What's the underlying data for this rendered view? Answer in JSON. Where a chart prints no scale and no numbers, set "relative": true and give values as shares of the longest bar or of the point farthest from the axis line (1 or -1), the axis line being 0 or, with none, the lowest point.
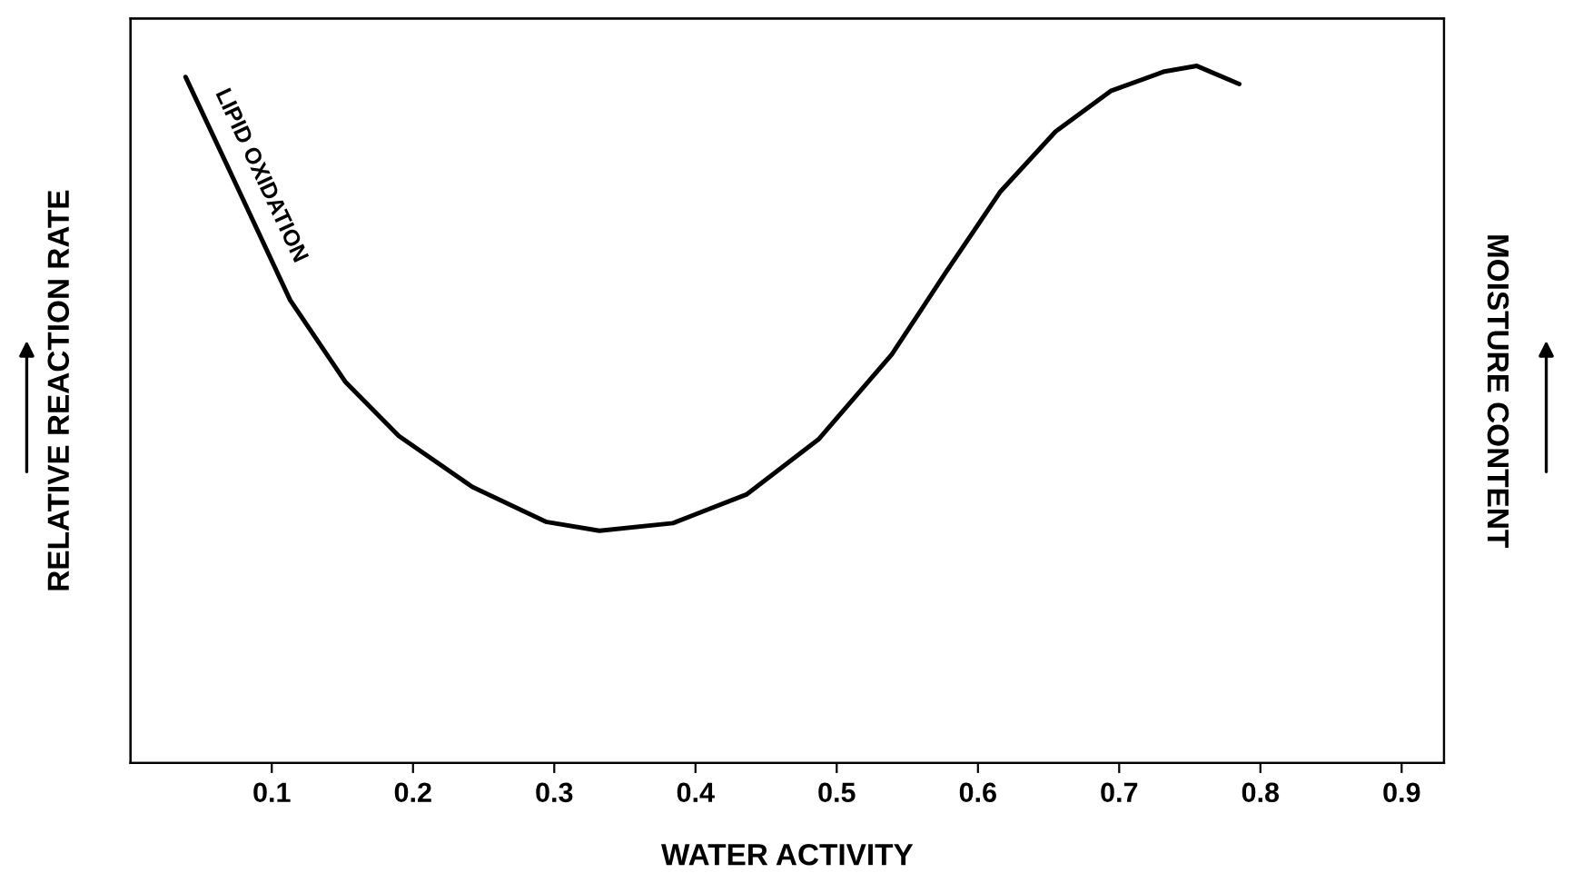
{
  "chart_data": {
    "type": "line",
    "relative": true,
    "xlabel": "WATER ACTIVITY",
    "ylabel": "RELATIVE REACTION RATE",
    "y2label": "MOISTURE CONTENT",
    "xlim": [
      0,
      0.93
    ],
    "xticks": [
      0.1,
      0.2,
      0.3,
      0.4,
      0.5,
      0.6,
      0.7,
      0.8,
      0.9
    ],
    "annotations": [
      "LIPID OXIDATION"
    ],
    "series": [
      {
        "color": "#000000",
        "x": [
          0.039,
          0.074,
          0.113,
          0.152,
          0.19,
          0.242,
          0.294,
          0.332,
          0.384,
          0.436,
          0.487,
          0.539,
          0.577,
          0.616,
          0.655,
          0.694,
          0.732,
          0.755,
          0.785
        ],
        "values": [
          0.984,
          0.833,
          0.664,
          0.547,
          0.469,
          0.396,
          0.346,
          0.333,
          0.344,
          0.385,
          0.464,
          0.586,
          0.703,
          0.82,
          0.906,
          0.964,
          0.992,
          1.0,
          0.974
        ]
      }
    ]
  }
}
